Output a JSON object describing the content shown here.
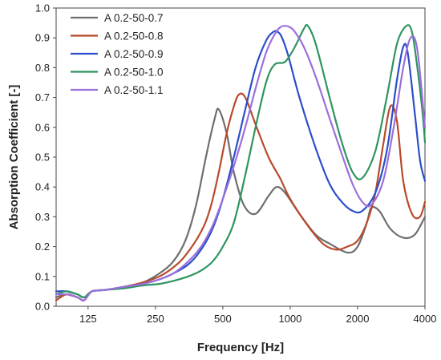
{
  "chart_data": {
    "type": "line",
    "title": "",
    "xlabel": "Frequency [Hz]",
    "ylabel": "Absorption Coefficient [-]",
    "xscale": "log",
    "xlim": [
      90,
      4000
    ],
    "ylim": [
      0,
      1
    ],
    "xticks": [
      125,
      250,
      500,
      1000,
      2000,
      4000
    ],
    "xtick_labels": [
      "125",
      "250",
      "500",
      "1000",
      "2000",
      "4000"
    ],
    "yticks": [
      0,
      0.1,
      0.2,
      0.3,
      0.4,
      0.5,
      0.6,
      0.7,
      0.8,
      0.9,
      1.0
    ],
    "ytick_labels": [
      "0.0",
      "0.1",
      "0.2",
      "0.3",
      "0.4",
      "0.5",
      "0.6",
      "0.7",
      "0.8",
      "0.9",
      "1.0"
    ],
    "grid": false,
    "legend_position": "top-left",
    "series": [
      {
        "name": "A 0.2-50-0.7",
        "color": "#6e6e6e",
        "x": [
          90,
          100,
          112,
          120,
          130,
          150,
          180,
          220,
          260,
          300,
          340,
          380,
          420,
          460,
          480,
          520,
          560,
          620,
          700,
          800,
          870,
          950,
          1100,
          1300,
          1500,
          1800,
          2000,
          2200,
          2300,
          2500,
          2800,
          3200,
          3600,
          4000
        ],
        "y": [
          0.03,
          0.04,
          0.03,
          0.02,
          0.05,
          0.055,
          0.065,
          0.08,
          0.11,
          0.15,
          0.22,
          0.34,
          0.5,
          0.63,
          0.66,
          0.58,
          0.45,
          0.34,
          0.31,
          0.37,
          0.4,
          0.38,
          0.31,
          0.24,
          0.21,
          0.18,
          0.2,
          0.28,
          0.33,
          0.32,
          0.26,
          0.23,
          0.24,
          0.3
        ]
      },
      {
        "name": "A 0.2-50-0.8",
        "color": "#b84a2a",
        "x": [
          90,
          100,
          112,
          120,
          130,
          150,
          180,
          220,
          260,
          300,
          340,
          400,
          440,
          480,
          520,
          560,
          590,
          630,
          700,
          800,
          900,
          1000,
          1200,
          1400,
          1600,
          1800,
          2000,
          2200,
          2400,
          2600,
          2800,
          3000,
          3200,
          3500,
          3800,
          4000
        ],
        "y": [
          0.02,
          0.04,
          0.03,
          0.02,
          0.05,
          0.055,
          0.065,
          0.08,
          0.1,
          0.13,
          0.17,
          0.25,
          0.33,
          0.45,
          0.58,
          0.67,
          0.71,
          0.7,
          0.61,
          0.5,
          0.43,
          0.36,
          0.27,
          0.21,
          0.19,
          0.2,
          0.22,
          0.28,
          0.38,
          0.54,
          0.67,
          0.62,
          0.42,
          0.31,
          0.3,
          0.35
        ]
      },
      {
        "name": "A 0.2-50-0.9",
        "color": "#2a4fc8",
        "x": [
          90,
          100,
          112,
          120,
          130,
          150,
          180,
          220,
          260,
          300,
          350,
          400,
          450,
          500,
          560,
          630,
          700,
          780,
          840,
          880,
          920,
          980,
          1100,
          1300,
          1500,
          1700,
          1900,
          2100,
          2400,
          2700,
          3000,
          3200,
          3350,
          3600,
          3800,
          4000
        ],
        "y": [
          0.05,
          0.05,
          0.04,
          0.03,
          0.05,
          0.055,
          0.065,
          0.075,
          0.09,
          0.11,
          0.14,
          0.19,
          0.26,
          0.36,
          0.5,
          0.66,
          0.8,
          0.89,
          0.92,
          0.92,
          0.9,
          0.84,
          0.7,
          0.53,
          0.41,
          0.35,
          0.32,
          0.32,
          0.38,
          0.52,
          0.76,
          0.87,
          0.85,
          0.65,
          0.49,
          0.42
        ]
      },
      {
        "name": "A 0.2-50-1.0",
        "color": "#2f9460",
        "x": [
          90,
          100,
          112,
          120,
          130,
          150,
          180,
          220,
          260,
          300,
          350,
          400,
          450,
          500,
          560,
          630,
          700,
          780,
          850,
          950,
          1050,
          1150,
          1200,
          1300,
          1500,
          1700,
          1900,
          2100,
          2400,
          2700,
          3000,
          3300,
          3500,
          3700,
          3900,
          4000
        ],
        "y": [
          0.04,
          0.05,
          0.04,
          0.03,
          0.05,
          0.055,
          0.06,
          0.07,
          0.075,
          0.085,
          0.1,
          0.12,
          0.15,
          0.2,
          0.28,
          0.44,
          0.6,
          0.75,
          0.81,
          0.82,
          0.87,
          0.93,
          0.94,
          0.88,
          0.7,
          0.55,
          0.45,
          0.43,
          0.52,
          0.7,
          0.88,
          0.94,
          0.92,
          0.8,
          0.65,
          0.55
        ]
      },
      {
        "name": "A 0.2-50-1.1",
        "color": "#9b6fdc",
        "x": [
          90,
          100,
          112,
          120,
          130,
          150,
          180,
          220,
          260,
          300,
          350,
          400,
          450,
          500,
          560,
          630,
          700,
          780,
          850,
          900,
          950,
          1000,
          1050,
          1150,
          1300,
          1500,
          1700,
          1900,
          2100,
          2300,
          2600,
          2900,
          3200,
          3450,
          3700,
          4000
        ],
        "y": [
          0.04,
          0.04,
          0.03,
          0.02,
          0.05,
          0.055,
          0.065,
          0.075,
          0.09,
          0.11,
          0.15,
          0.2,
          0.27,
          0.36,
          0.47,
          0.6,
          0.73,
          0.85,
          0.91,
          0.935,
          0.94,
          0.935,
          0.92,
          0.87,
          0.77,
          0.63,
          0.51,
          0.41,
          0.35,
          0.34,
          0.42,
          0.6,
          0.8,
          0.9,
          0.86,
          0.6
        ]
      }
    ]
  }
}
